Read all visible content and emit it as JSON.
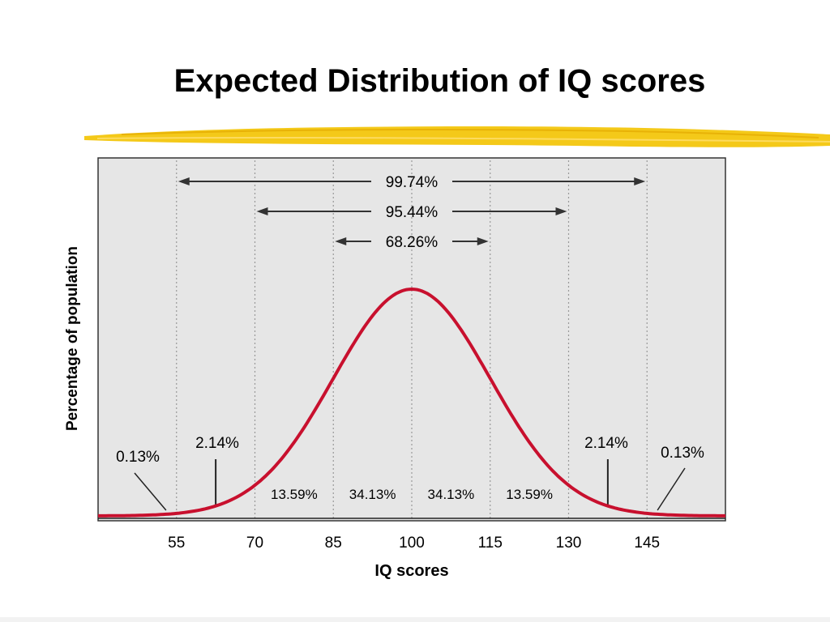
{
  "slide": {
    "title": "Expected Distribution of IQ scores"
  },
  "colors": {
    "background": "#ffffff",
    "chart_background": "#e6e6e6",
    "curve": "#c8102e",
    "highlighter": "#f3c300",
    "guide_lines": "#999999",
    "text": "#000000"
  },
  "chart_data": {
    "type": "line",
    "distribution": "normal",
    "mean": 100,
    "sd": 15,
    "xlabel": "IQ scores",
    "ylabel": "Percentage of population",
    "xlim": [
      40,
      160
    ],
    "x_ticks": [
      55,
      70,
      85,
      100,
      115,
      130,
      145
    ],
    "grid": "vertical dotted lines at each tick",
    "ranges": [
      {
        "label": "99.74%",
        "from": 55,
        "to": 145
      },
      {
        "label": "95.44%",
        "from": 70,
        "to": 130
      },
      {
        "label": "68.26%",
        "from": 85,
        "to": 115
      }
    ],
    "region_percentages": [
      {
        "label": "13.59%",
        "from": 70,
        "to": 85
      },
      {
        "label": "34.13%",
        "from": 85,
        "to": 100
      },
      {
        "label": "34.13%",
        "from": 100,
        "to": 115
      },
      {
        "label": "13.59%",
        "from": 115,
        "to": 130
      }
    ],
    "callouts": [
      {
        "label": "0.13%",
        "x": 53,
        "side": "left-tail"
      },
      {
        "label": "2.14%",
        "x": 62.5,
        "side": "left"
      },
      {
        "label": "2.14%",
        "x": 137.5,
        "side": "right"
      },
      {
        "label": "0.13%",
        "x": 147,
        "side": "right-tail"
      }
    ]
  }
}
